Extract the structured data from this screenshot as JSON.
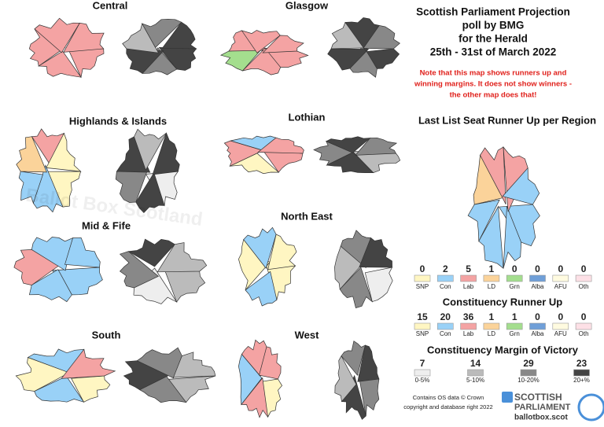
{
  "title_lines": [
    "Scottish Parliament Projection",
    "poll by BMG",
    "for the Herald",
    "25th - 31st of March 2022"
  ],
  "note_lines": [
    "Note that this map shows runners up and",
    "winning margins. It does not show winners -",
    "the other map does that!"
  ],
  "watermark": "Ballot Box Scotland",
  "regions": [
    {
      "name": "Central"
    },
    {
      "name": "Glasgow"
    },
    {
      "name": "Highlands & Islands"
    },
    {
      "name": "Lothian"
    },
    {
      "name": "Mid & Fife"
    },
    {
      "name": "North East"
    },
    {
      "name": "South"
    },
    {
      "name": "West"
    }
  ],
  "list_runner_up": {
    "title": "Last List Seat Runner Up per Region",
    "parties": [
      {
        "label": "SNP",
        "count": "0",
        "color": "#fff6c2"
      },
      {
        "label": "Con",
        "count": "2",
        "color": "#99d1f7"
      },
      {
        "label": "Lab",
        "count": "5",
        "color": "#f4a3a3"
      },
      {
        "label": "LD",
        "count": "1",
        "color": "#fbd39a"
      },
      {
        "label": "Grn",
        "count": "0",
        "color": "#a4de8e"
      },
      {
        "label": "Alba",
        "count": "0",
        "color": "#6f9fd8"
      },
      {
        "label": "AFU",
        "count": "0",
        "color": "#fffbe0"
      },
      {
        "label": "Oth",
        "count": "0",
        "color": "#fde0e6"
      }
    ]
  },
  "constituency_runner_up": {
    "title": "Constituency Runner Up",
    "parties": [
      {
        "label": "SNP",
        "count": "15",
        "color": "#fff6c2"
      },
      {
        "label": "Con",
        "count": "20",
        "color": "#99d1f7"
      },
      {
        "label": "Lab",
        "count": "36",
        "color": "#f4a3a3"
      },
      {
        "label": "LD",
        "count": "1",
        "color": "#fbd39a"
      },
      {
        "label": "Grn",
        "count": "1",
        "color": "#a4de8e"
      },
      {
        "label": "Alba",
        "count": "0",
        "color": "#6f9fd8"
      },
      {
        "label": "AFU",
        "count": "0",
        "color": "#fffbe0"
      },
      {
        "label": "Oth",
        "count": "0",
        "color": "#fde0e6"
      }
    ]
  },
  "margin": {
    "title": "Constituency Margin of Victory",
    "bands": [
      {
        "label": "0-5%",
        "count": "7",
        "color": "#eeeeee"
      },
      {
        "label": "5-10%",
        "count": "14",
        "color": "#bbbbbb"
      },
      {
        "label": "10-20%",
        "count": "29",
        "color": "#888888"
      },
      {
        "label": "20+%",
        "count": "23",
        "color": "#444444"
      }
    ]
  },
  "credit_lines": [
    "Contains OS data © Crown",
    "copyright and database right 2022"
  ],
  "logo": {
    "line1": "SCOTTISH",
    "line2": "PARLIAMENT",
    "url": "ballotbox.scot"
  }
}
